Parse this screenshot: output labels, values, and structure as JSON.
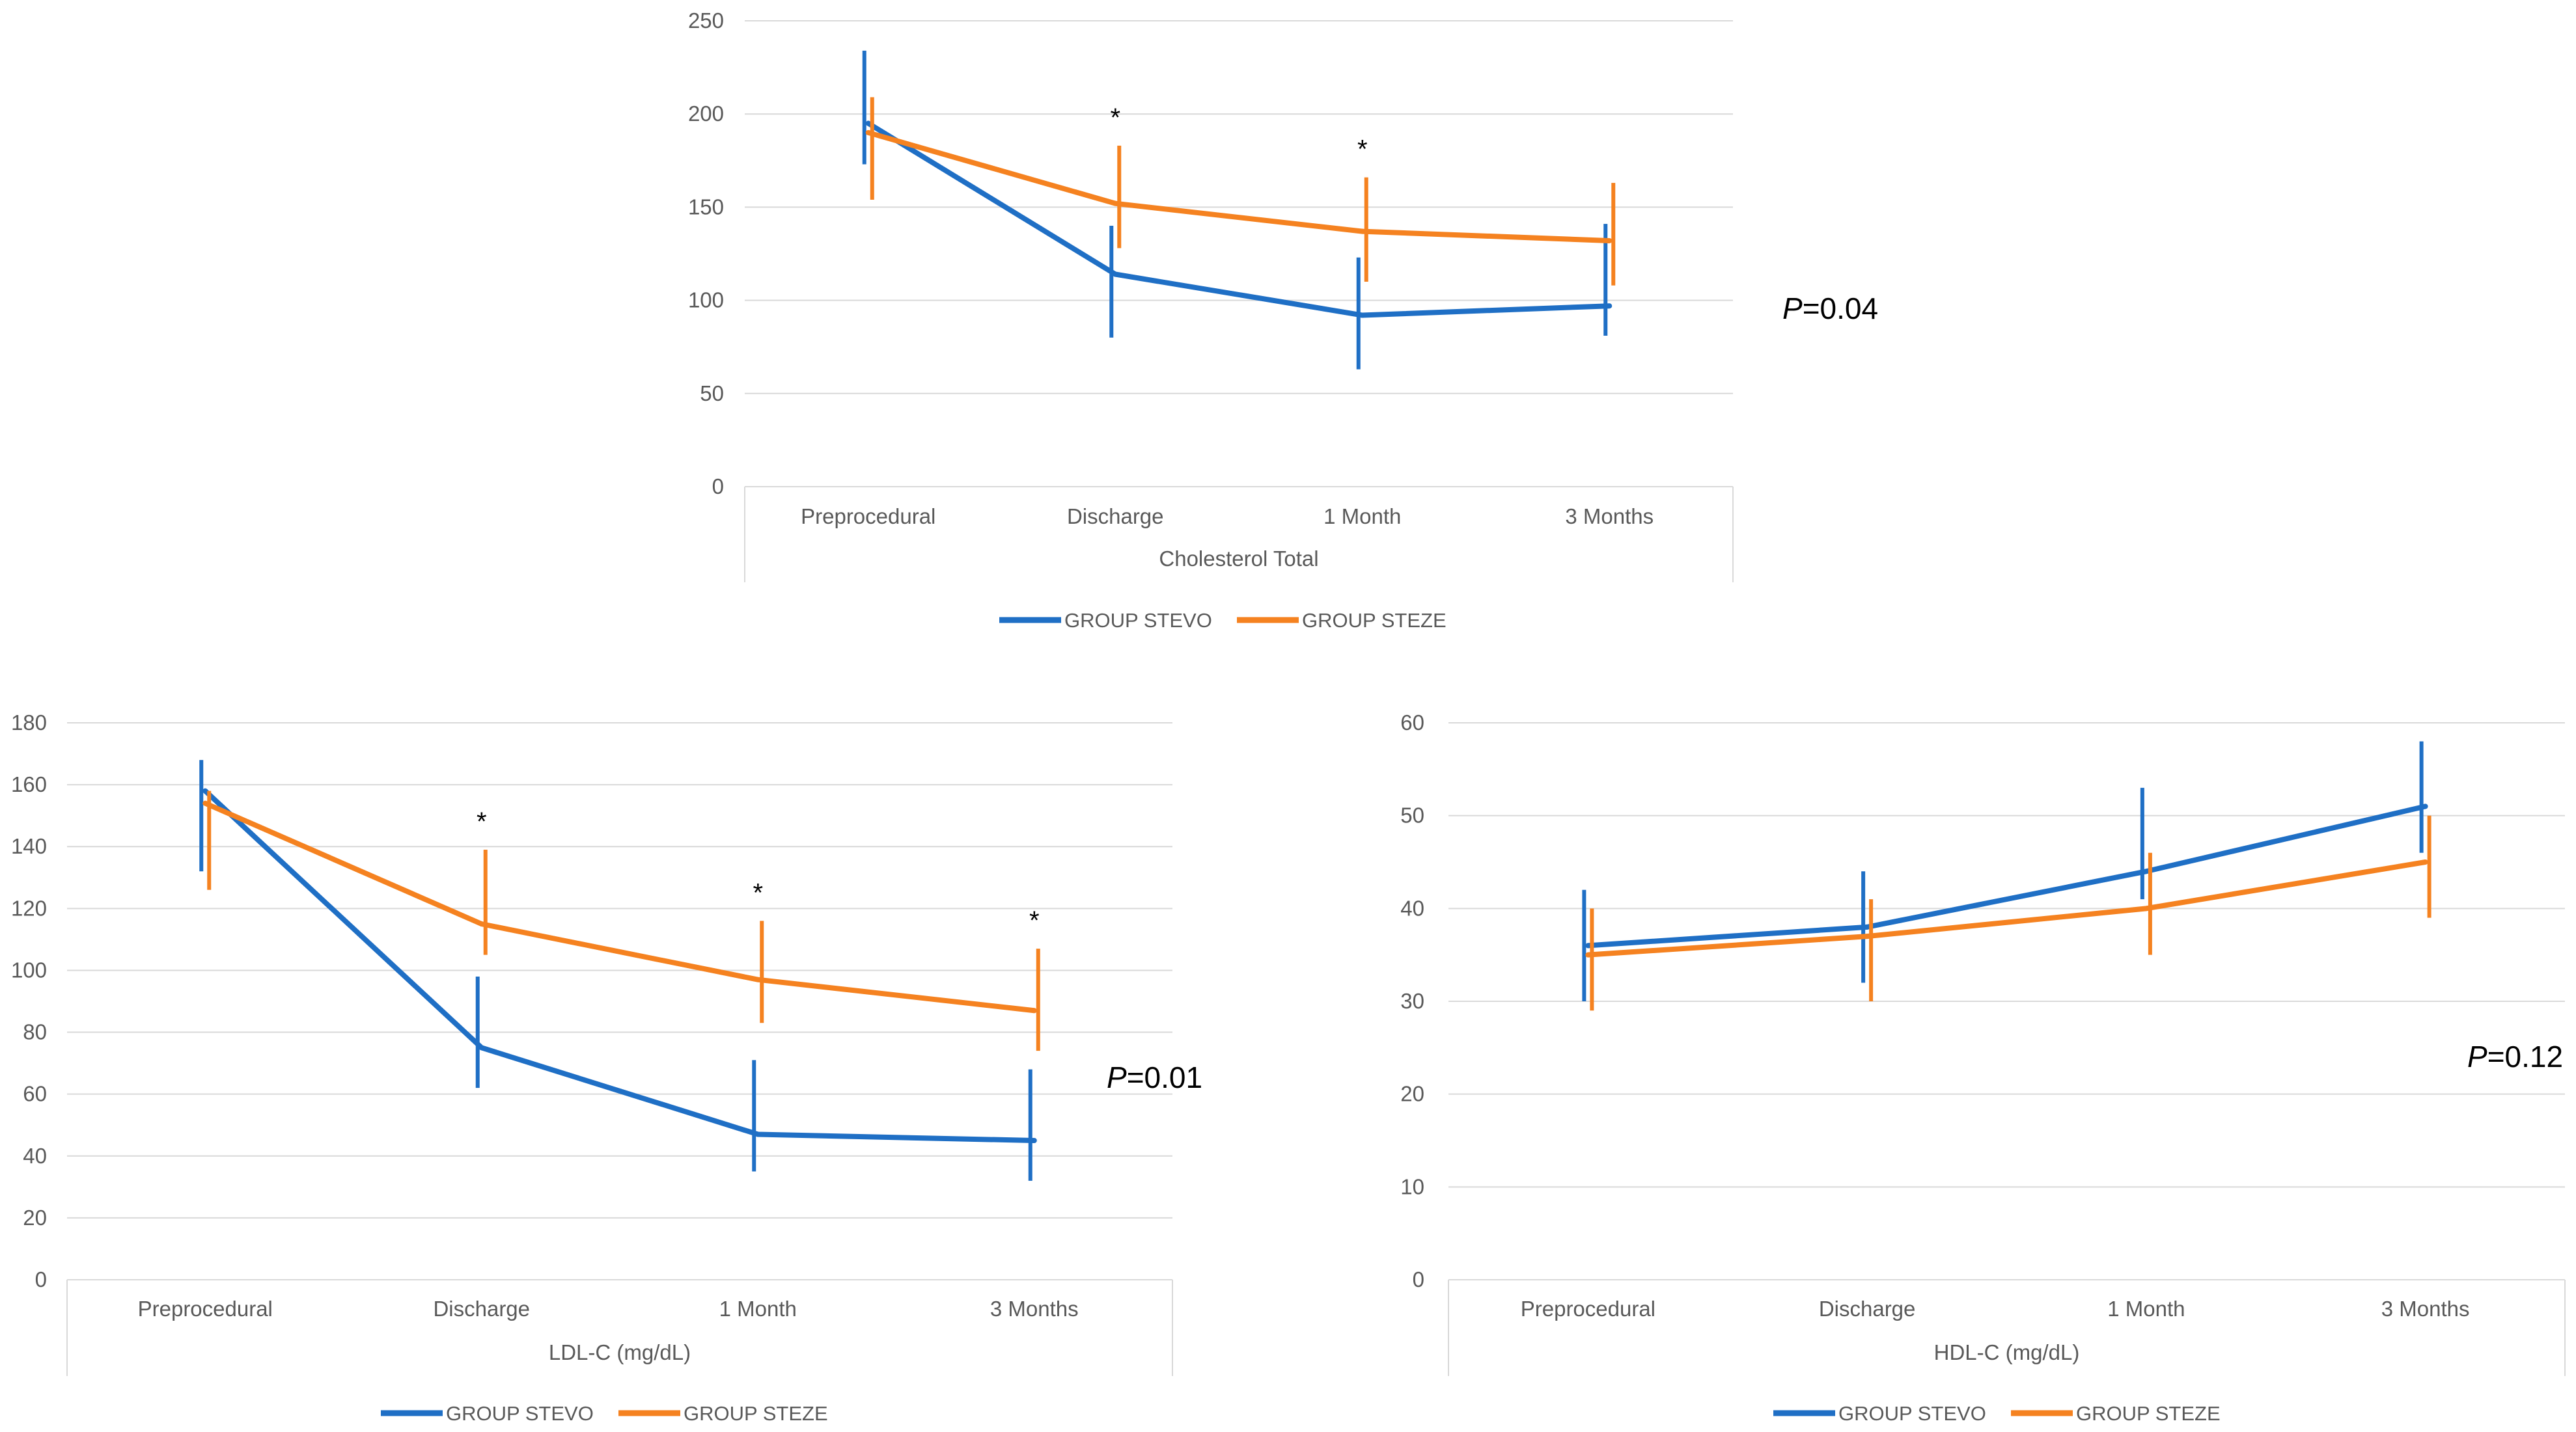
{
  "colors": {
    "stevo": "#1f6fc5",
    "steze": "#f58220",
    "grid": "#d9d9d9",
    "text": "#595959"
  },
  "legend": {
    "stevo": "GROUP STEVO",
    "steze": "GROUP STEZE"
  },
  "chart_data": [
    {
      "type": "line",
      "id": "chol",
      "title": "",
      "xlabel": "Cholesterol Total",
      "ylabel": "",
      "categories": [
        "Preprocedural",
        "Discharge",
        "1 Month",
        "3 Months"
      ],
      "ylim": [
        0,
        250
      ],
      "yticks": [
        0,
        50,
        100,
        150,
        200,
        250
      ],
      "series": [
        {
          "name": "GROUP STEVO",
          "values": [
            195,
            114,
            92,
            97
          ],
          "err_low": [
            173,
            80,
            63,
            81
          ],
          "err_high": [
            234,
            140,
            123,
            141
          ]
        },
        {
          "name": "GROUP STEZE",
          "values": [
            190,
            152,
            137,
            132
          ],
          "err_low": [
            154,
            128,
            110,
            108
          ],
          "err_high": [
            209,
            183,
            166,
            163
          ]
        }
      ],
      "significance": [
        "",
        "*",
        "*",
        ""
      ],
      "p_label": "P",
      "p_value": "=0.04"
    },
    {
      "type": "line",
      "id": "ldl",
      "title": "",
      "xlabel": "LDL-C (mg/dL)",
      "ylabel": "",
      "categories": [
        "Preprocedural",
        "Discharge",
        "1 Month",
        "3 Months"
      ],
      "ylim": [
        0,
        180
      ],
      "yticks": [
        0,
        20,
        40,
        60,
        80,
        100,
        120,
        140,
        160,
        180
      ],
      "series": [
        {
          "name": "GROUP STEVO",
          "values": [
            158,
            75,
            47,
            45
          ],
          "err_low": [
            132,
            62,
            35,
            32
          ],
          "err_high": [
            168,
            98,
            71,
            68
          ]
        },
        {
          "name": "GROUP STEZE",
          "values": [
            154,
            115,
            97,
            87
          ],
          "err_low": [
            126,
            105,
            83,
            74
          ],
          "err_high": [
            158,
            139,
            116,
            107
          ]
        }
      ],
      "significance": [
        "",
        "*",
        "*",
        "*"
      ],
      "p_label": "P",
      "p_value": "=0.01"
    },
    {
      "type": "line",
      "id": "hdl",
      "title": "",
      "xlabel": "HDL-C (mg/dL)",
      "ylabel": "",
      "categories": [
        "Preprocedural",
        "Discharge",
        "1 Month",
        "3 Months"
      ],
      "ylim": [
        0,
        60
      ],
      "yticks": [
        0,
        10,
        20,
        30,
        40,
        50,
        60
      ],
      "series": [
        {
          "name": "GROUP STEVO",
          "values": [
            36,
            38,
            44,
            51
          ],
          "err_low": [
            30,
            32,
            41,
            46
          ],
          "err_high": [
            42,
            44,
            53,
            58
          ]
        },
        {
          "name": "GROUP STEZE",
          "values": [
            35,
            37,
            40,
            45
          ],
          "err_low": [
            29,
            30,
            35,
            39
          ],
          "err_high": [
            40,
            41,
            46,
            50
          ]
        }
      ],
      "significance": [
        "",
        "",
        "",
        ""
      ],
      "p_label": "P",
      "p_value": "=0.12"
    }
  ]
}
